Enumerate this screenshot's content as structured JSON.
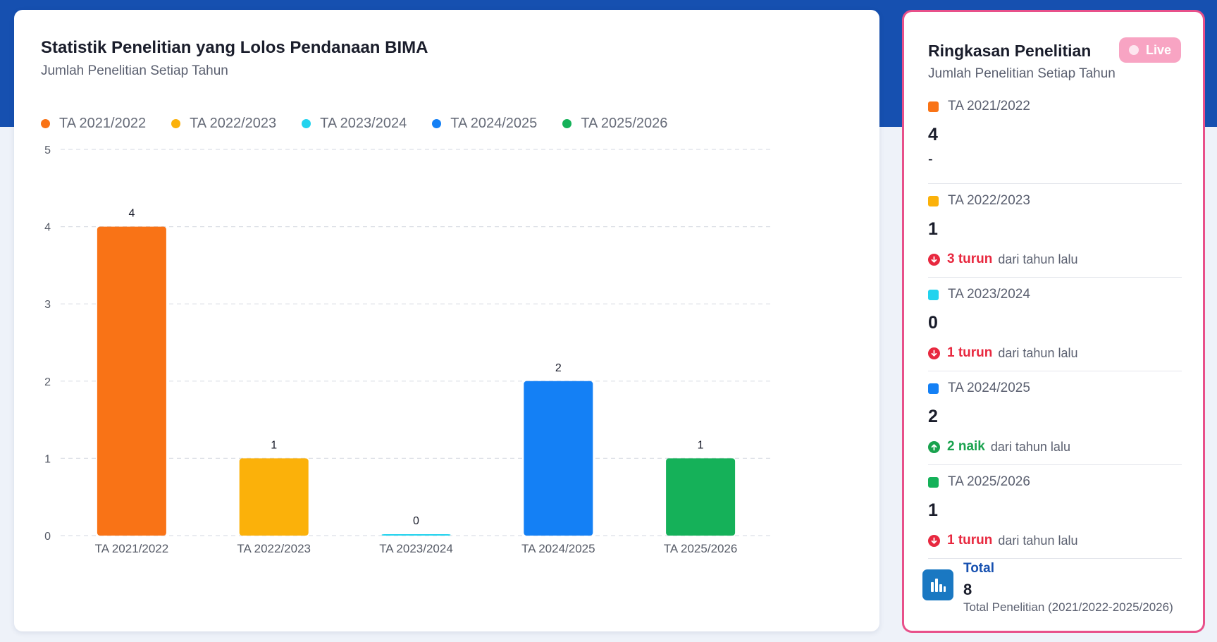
{
  "chart_card": {
    "title": "Statistik Penelitian yang Lolos Pendanaan BIMA",
    "subtitle": "Jumlah Penelitian Setiap Tahun"
  },
  "colors": {
    "header_band": "#1650b0",
    "panel_border": "#e8508a",
    "live_badge": "#f8a4c3",
    "down": "#e8283f",
    "up": "#19a24e",
    "total_icon": "#1a78c2"
  },
  "chart_data": {
    "type": "bar",
    "title": "Statistik Penelitian yang Lolos Pendanaan BIMA",
    "subtitle": "Jumlah Penelitian Setiap Tahun",
    "categories": [
      "TA 2021/2022",
      "TA 2022/2023",
      "TA 2023/2024",
      "TA 2024/2025",
      "TA 2025/2026"
    ],
    "values": [
      4,
      1,
      0,
      2,
      1
    ],
    "colors": [
      "#f97316",
      "#fbb10a",
      "#22d3ee",
      "#1480f5",
      "#15b159"
    ],
    "legend": [
      "TA 2021/2022",
      "TA 2022/2023",
      "TA 2023/2024",
      "TA 2024/2025",
      "TA 2025/2026"
    ],
    "legend_position": "top-left",
    "xlabel": "",
    "ylabel": "",
    "ylim": [
      0,
      5
    ],
    "yticks": [
      0,
      1,
      2,
      3,
      4,
      5
    ],
    "grid": "horizontal-dashed",
    "data_labels": true
  },
  "summary": {
    "title": "Ringkasan Penelitian",
    "subtitle": "Jumlah Penelitian Setiap Tahun",
    "live_label": "Live",
    "items": [
      {
        "label": "TA 2021/2022",
        "value": "4",
        "change": null,
        "color": "#f97316",
        "dash": "-"
      },
      {
        "label": "TA 2022/2023",
        "value": "1",
        "color": "#fbb10a",
        "change": {
          "direction": "down",
          "amount": "3 turun",
          "text": "dari tahun lalu",
          "icon": "arrow-down-circle-icon"
        }
      },
      {
        "label": "TA 2023/2024",
        "value": "0",
        "color": "#22d3ee",
        "change": {
          "direction": "down",
          "amount": "1 turun",
          "text": "dari tahun lalu",
          "icon": "arrow-down-circle-icon"
        }
      },
      {
        "label": "TA 2024/2025",
        "value": "2",
        "color": "#1480f5",
        "change": {
          "direction": "up",
          "amount": "2 naik",
          "text": "dari tahun lalu",
          "icon": "arrow-up-circle-icon"
        }
      },
      {
        "label": "TA 2025/2026",
        "value": "1",
        "color": "#15b159",
        "change": {
          "direction": "down",
          "amount": "1 turun",
          "text": "dari tahun lalu",
          "icon": "arrow-down-circle-icon"
        }
      }
    ],
    "total": {
      "label": "Total",
      "value": "8",
      "note": "Total Penelitian (2021/2022-2025/2026)",
      "icon": "bar-chart-icon"
    }
  }
}
